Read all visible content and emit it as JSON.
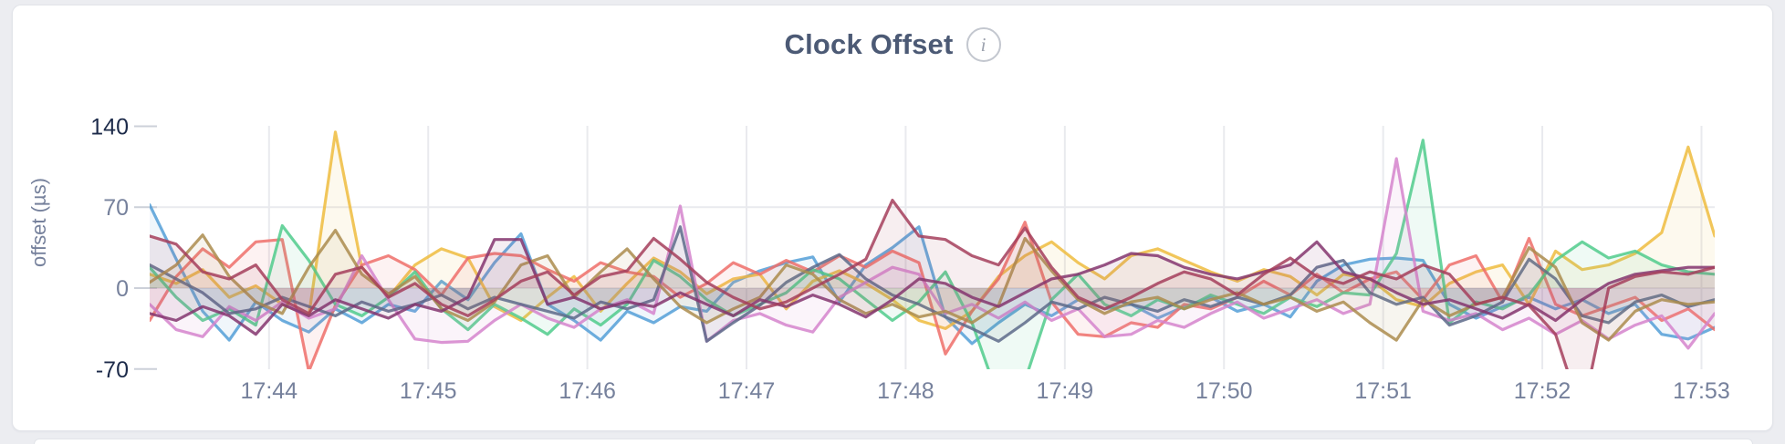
{
  "page": {
    "background": "#ecedf1"
  },
  "panel": {
    "title": "Clock Offset",
    "info_glyph": "i"
  },
  "chart_data": {
    "type": "line",
    "title": "Clock Offset",
    "ylabel": "offset (µs)",
    "yticks": [
      140,
      70,
      0,
      -70
    ],
    "ylim": [
      -70,
      148
    ],
    "x_tick_labels": [
      "17:44",
      "17:45",
      "17:46",
      "17:47",
      "17:48",
      "17:49",
      "17:50",
      "17:51",
      "17:52",
      "17:53"
    ],
    "x_tick_positions": [
      4.5,
      10.5,
      16.5,
      22.5,
      28.5,
      34.5,
      40.5,
      46.5,
      52.5,
      58.5
    ],
    "points_per_series": 60,
    "sample_interval_seconds": 10,
    "grid_h_lines_at": [
      70,
      0
    ],
    "legend": "none",
    "axis_colors": {
      "tick": "#76819c",
      "extreme_tick": "#1d2b4a"
    },
    "gridline_color": "#e9eaee",
    "series": [
      {
        "name": "series-blue",
        "color": "#549fd7",
        "values": [
          72,
          25,
          -20,
          -45,
          -12,
          -28,
          -38,
          -18,
          -30,
          -14,
          -20,
          6,
          -10,
          22,
          47,
          -14,
          -28,
          -45,
          -20,
          -30,
          -16,
          -20,
          5,
          15,
          22,
          27,
          -12,
          20,
          35,
          53,
          -25,
          -48,
          -30,
          -14,
          -24,
          -10,
          -18,
          -14,
          -26,
          -16,
          -8,
          -20,
          -14,
          -25,
          6,
          20,
          25,
          26,
          24,
          -14,
          -26,
          -16,
          -8,
          -18,
          -10,
          -22,
          -14,
          -40,
          -44,
          -34
        ]
      },
      {
        "name": "series-gold",
        "color": "#eebc3e",
        "values": [
          12,
          4,
          16,
          -8,
          2,
          -14,
          -24,
          135,
          18,
          -8,
          20,
          34,
          26,
          -16,
          -28,
          -8,
          10,
          -20,
          4,
          26,
          14,
          -5,
          8,
          12,
          -18,
          6,
          15,
          4,
          -10,
          -28,
          -35,
          -20,
          10,
          28,
          40,
          22,
          8,
          28,
          34,
          24,
          14,
          6,
          16,
          10,
          -6,
          12,
          8,
          -10,
          -16,
          4,
          14,
          20,
          -14,
          32,
          16,
          20,
          30,
          48,
          122,
          45
        ]
      },
      {
        "name": "series-salmon",
        "color": "#ee6f6a",
        "values": [
          -28,
          10,
          34,
          18,
          40,
          42,
          -72,
          -15,
          20,
          28,
          16,
          -6,
          26,
          30,
          28,
          16,
          6,
          22,
          14,
          10,
          -8,
          4,
          22,
          12,
          24,
          14,
          28,
          18,
          32,
          22,
          -57,
          -20,
          8,
          57,
          -12,
          -40,
          -42,
          -30,
          -34,
          -14,
          -18,
          -8,
          6,
          -6,
          12,
          -4,
          8,
          14,
          -10,
          20,
          28,
          -12,
          43,
          -14,
          -24,
          -16,
          -8,
          -28,
          -18,
          -36
        ]
      },
      {
        "name": "series-green",
        "color": "#50cb8c",
        "values": [
          18,
          -8,
          -28,
          -18,
          -32,
          54,
          24,
          -14,
          -24,
          -8,
          14,
          -18,
          -36,
          -14,
          -26,
          -40,
          -18,
          -32,
          -14,
          24,
          10,
          -10,
          -24,
          -14,
          -4,
          16,
          8,
          -10,
          -28,
          -12,
          14,
          -30,
          -95,
          -80,
          -10,
          12,
          -14,
          -24,
          -10,
          -18,
          -6,
          -14,
          -22,
          -8,
          -16,
          -4,
          -6,
          30,
          128,
          -30,
          -12,
          -18,
          -6,
          24,
          40,
          26,
          32,
          20,
          14,
          12
        ]
      },
      {
        "name": "series-orchid",
        "color": "#d584cd",
        "values": [
          -14,
          -36,
          -42,
          -16,
          -28,
          -12,
          -26,
          -18,
          28,
          -10,
          -44,
          -47,
          -46,
          -28,
          -14,
          -26,
          -34,
          -18,
          -10,
          -22,
          71,
          -46,
          -28,
          -22,
          -32,
          -38,
          -8,
          5,
          18,
          12,
          -22,
          -14,
          -26,
          -12,
          -28,
          -18,
          -42,
          -40,
          -28,
          -34,
          -22,
          -12,
          -26,
          -18,
          -10,
          -22,
          -14,
          112,
          -20,
          -28,
          -22,
          -36,
          -26,
          -40,
          -28,
          -44,
          -32,
          -24,
          -52,
          -22
        ]
      },
      {
        "name": "series-slate",
        "color": "#5d6a89",
        "values": [
          20,
          8,
          -4,
          -22,
          -18,
          -8,
          -16,
          -24,
          -12,
          -20,
          -14,
          -6,
          -18,
          -8,
          -14,
          -20,
          -26,
          -12,
          -18,
          -10,
          53,
          -46,
          -30,
          -15,
          5,
          18,
          29,
          8,
          -6,
          -14,
          -25,
          -35,
          -46,
          -30,
          -12,
          -18,
          -8,
          -14,
          -20,
          -10,
          -16,
          -8,
          -14,
          -6,
          18,
          24,
          -4,
          -14,
          -8,
          -32,
          -24,
          -12,
          25,
          8,
          -24,
          -30,
          -12,
          -6,
          -16,
          -10
        ]
      },
      {
        "name": "series-tan",
        "color": "#ab8c4d",
        "values": [
          5,
          20,
          46,
          10,
          -12,
          -22,
          18,
          50,
          12,
          -5,
          10,
          -18,
          -28,
          -12,
          20,
          28,
          -8,
          14,
          34,
          8,
          -16,
          -30,
          -18,
          -8,
          20,
          12,
          -10,
          -22,
          -14,
          -25,
          -20,
          -30,
          -15,
          43,
          15,
          -10,
          -22,
          -12,
          -8,
          -18,
          -10,
          -4,
          -14,
          -8,
          -20,
          -12,
          -30,
          -45,
          -10,
          -24,
          -14,
          -8,
          35,
          18,
          -30,
          -45,
          -20,
          -10,
          -14,
          -12
        ]
      },
      {
        "name": "series-magenta",
        "color": "#84356f",
        "values": [
          -22,
          -28,
          -16,
          -24,
          -40,
          -14,
          -24,
          -10,
          -18,
          -26,
          -14,
          -20,
          -8,
          42,
          42,
          -14,
          -8,
          -18,
          -12,
          -16,
          -4,
          -14,
          -24,
          -10,
          -16,
          -6,
          -14,
          -25,
          -10,
          8,
          4,
          -8,
          -16,
          -4,
          8,
          12,
          20,
          30,
          28,
          18,
          12,
          8,
          14,
          20,
          40,
          14,
          8,
          -4,
          -14,
          -10,
          -18,
          -26,
          -14,
          -28,
          -10,
          4,
          12,
          15,
          18,
          18
        ]
      },
      {
        "name": "series-maroon",
        "color": "#a43e5c",
        "values": [
          45,
          38,
          14,
          8,
          20,
          -10,
          -22,
          12,
          18,
          -8,
          4,
          -14,
          -24,
          -10,
          6,
          14,
          -6,
          10,
          15,
          43,
          25,
          5,
          -8,
          -18,
          -12,
          0,
          12,
          25,
          76,
          45,
          42,
          28,
          20,
          52,
          18,
          -8,
          -18,
          -8,
          4,
          14,
          8,
          -6,
          12,
          26,
          10,
          4,
          14,
          8,
          20,
          12,
          -14,
          -8,
          -15,
          -40,
          -110,
          0,
          10,
          14,
          12,
          18
        ]
      }
    ]
  }
}
